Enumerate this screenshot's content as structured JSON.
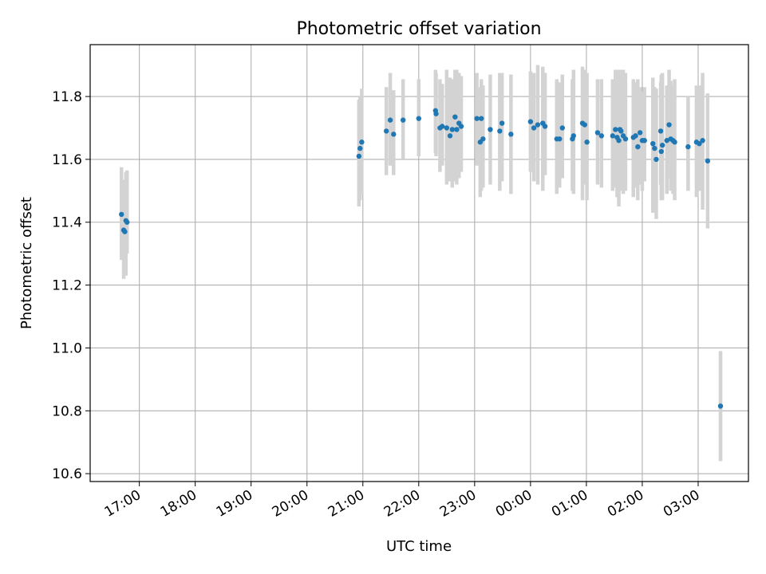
{
  "chart_data": {
    "type": "scatter",
    "title": "Photometric offset variation",
    "xlabel": "UTC time",
    "ylabel": "Photometric offset",
    "x_unit": "hours (UTC clock, times after midnight written as 24 + hour)",
    "xlim": [
      16.12,
      27.9
    ],
    "ylim": [
      10.575,
      11.965
    ],
    "grid": true,
    "x_ticks": [
      17,
      18,
      19,
      20,
      21,
      22,
      23,
      24,
      25,
      26,
      27
    ],
    "x_tick_labels": [
      "17:00",
      "18:00",
      "19:00",
      "20:00",
      "21:00",
      "22:00",
      "23:00",
      "00:00",
      "01:00",
      "02:00",
      "03:00"
    ],
    "y_ticks": [
      10.6,
      10.8,
      11.0,
      11.2,
      11.4,
      11.6,
      11.8
    ],
    "y_tick_labels": [
      "10.6",
      "10.8",
      "11.0",
      "11.2",
      "11.4",
      "11.6",
      "11.8"
    ],
    "marker_color": "#1f77b4",
    "errorbar_color": "#d3d3d3",
    "series": [
      {
        "x": [
          16.68,
          16.72,
          16.74,
          16.76,
          16.78,
          20.93,
          20.95,
          20.98,
          21.42,
          21.49,
          21.55,
          21.72,
          22.0,
          22.3,
          22.31,
          22.38,
          22.42,
          22.5,
          22.56,
          22.6,
          22.65,
          22.68,
          22.72,
          22.76,
          23.04,
          23.1,
          23.12,
          23.15,
          23.28,
          23.45,
          23.49,
          23.65,
          24.0,
          24.06,
          24.13,
          24.22,
          24.26,
          24.47,
          24.52,
          24.57,
          24.75,
          24.77,
          24.93,
          24.97,
          25.01,
          25.2,
          25.27,
          25.47,
          25.52,
          25.55,
          25.58,
          25.6,
          25.62,
          25.66,
          25.7,
          25.84,
          25.88,
          25.92,
          25.96,
          26.0,
          26.04,
          26.19,
          26.22,
          26.25,
          26.33,
          26.34,
          26.36,
          26.44,
          26.48,
          26.51,
          26.55,
          26.58,
          26.82,
          26.97,
          27.02,
          27.08,
          27.17,
          27.4
        ],
        "y": [
          11.425,
          11.375,
          11.37,
          11.405,
          11.4,
          11.61,
          11.635,
          11.655,
          11.69,
          11.725,
          11.68,
          11.725,
          11.73,
          11.755,
          11.745,
          11.7,
          11.705,
          11.7,
          11.675,
          11.695,
          11.735,
          11.695,
          11.715,
          11.705,
          11.73,
          11.655,
          11.73,
          11.665,
          11.695,
          11.69,
          11.715,
          11.68,
          11.72,
          11.7,
          11.71,
          11.715,
          11.705,
          11.665,
          11.665,
          11.7,
          11.665,
          11.675,
          11.715,
          11.71,
          11.655,
          11.685,
          11.675,
          11.675,
          11.695,
          11.67,
          11.66,
          11.695,
          11.69,
          11.675,
          11.665,
          11.67,
          11.675,
          11.64,
          11.685,
          11.66,
          11.66,
          11.65,
          11.635,
          11.6,
          11.69,
          11.625,
          11.645,
          11.66,
          11.71,
          11.665,
          11.66,
          11.655,
          11.64,
          11.655,
          11.65,
          11.66,
          11.595,
          10.815
        ],
        "y_low": [
          11.28,
          11.22,
          11.24,
          11.23,
          11.3,
          11.45,
          11.47,
          11.49,
          11.55,
          11.58,
          11.55,
          11.6,
          11.61,
          11.62,
          11.61,
          11.56,
          11.58,
          11.52,
          11.53,
          11.51,
          11.53,
          11.52,
          11.54,
          11.56,
          11.58,
          11.48,
          11.5,
          11.51,
          11.52,
          11.5,
          11.53,
          11.49,
          11.56,
          11.53,
          11.52,
          11.5,
          11.55,
          11.49,
          11.51,
          11.54,
          11.5,
          11.49,
          11.47,
          11.52,
          11.47,
          11.52,
          11.51,
          11.5,
          11.51,
          11.48,
          11.45,
          11.5,
          11.52,
          11.49,
          11.5,
          11.48,
          11.51,
          11.47,
          11.52,
          11.5,
          11.53,
          11.43,
          11.45,
          11.41,
          11.52,
          11.47,
          11.47,
          11.49,
          11.54,
          11.5,
          11.49,
          11.47,
          11.5,
          11.48,
          11.5,
          11.44,
          11.38,
          10.64
        ],
        "y_high": [
          11.575,
          11.535,
          11.5,
          11.56,
          11.565,
          11.79,
          11.8,
          11.825,
          11.83,
          11.875,
          11.82,
          11.855,
          11.855,
          11.885,
          11.875,
          11.855,
          11.84,
          11.885,
          11.86,
          11.855,
          11.885,
          11.885,
          11.875,
          11.865,
          11.875,
          11.83,
          11.855,
          11.835,
          11.87,
          11.875,
          11.875,
          11.87,
          11.88,
          11.875,
          11.9,
          11.895,
          11.875,
          11.855,
          11.845,
          11.87,
          11.855,
          11.885,
          11.895,
          11.885,
          11.875,
          11.855,
          11.855,
          11.855,
          11.885,
          11.885,
          11.885,
          11.885,
          11.875,
          11.885,
          11.875,
          11.855,
          11.845,
          11.855,
          11.83,
          11.815,
          11.83,
          11.86,
          11.83,
          11.825,
          11.845,
          11.87,
          11.875,
          11.835,
          11.885,
          11.85,
          11.835,
          11.855,
          11.8,
          11.835,
          11.835,
          11.875,
          11.81,
          10.99
        ]
      }
    ]
  }
}
